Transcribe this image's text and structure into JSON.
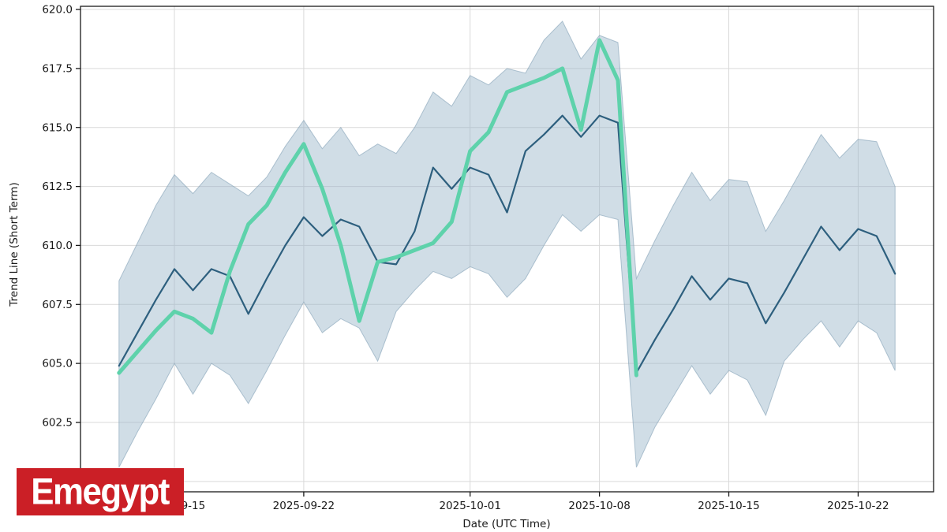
{
  "chart_data": {
    "type": "line",
    "xlabel": "Date (UTC Time)",
    "ylabel": "Trend Line (Short Term)",
    "grid": true,
    "legend": "none",
    "ylim": [
      599.5,
      620.15
    ],
    "x_dates": [
      "2025-09-12",
      "2025-09-13",
      "2025-09-14",
      "2025-09-15",
      "2025-09-16",
      "2025-09-17",
      "2025-09-18",
      "2025-09-19",
      "2025-09-20",
      "2025-09-21",
      "2025-09-22",
      "2025-09-23",
      "2025-09-24",
      "2025-09-25",
      "2025-09-26",
      "2025-09-27",
      "2025-09-28",
      "2025-09-29",
      "2025-09-30",
      "2025-10-01",
      "2025-10-02",
      "2025-10-03",
      "2025-10-04",
      "2025-10-05",
      "2025-10-06",
      "2025-10-07",
      "2025-10-08",
      "2025-10-09",
      "2025-10-10",
      "2025-10-11",
      "2025-10-12",
      "2025-10-13",
      "2025-10-14",
      "2025-10-15",
      "2025-10-16",
      "2025-10-17",
      "2025-10-18",
      "2025-10-19",
      "2025-10-20",
      "2025-10-21",
      "2025-10-22",
      "2025-10-23",
      "2025-10-24"
    ],
    "series": [
      {
        "name": "actual-line",
        "color": "#2d5f7e",
        "width": 2.2,
        "values": [
          604.9,
          606.3,
          607.7,
          609.0,
          608.1,
          609.0,
          608.7,
          607.1,
          608.6,
          610.0,
          611.2,
          610.4,
          611.1,
          610.8,
          609.3,
          609.2,
          610.6,
          613.3,
          612.4,
          613.3,
          613.0,
          611.4,
          614.0,
          614.7,
          615.5,
          614.6,
          615.5,
          615.2,
          604.6,
          606.0,
          607.3,
          608.7,
          607.7,
          608.6,
          608.4,
          606.7,
          608.0,
          609.4,
          610.8,
          609.8,
          610.7,
          610.4,
          608.8
        ]
      },
      {
        "name": "trend-line",
        "color": "#5ed2ab",
        "width": 5,
        "values": [
          604.6,
          605.5,
          606.4,
          607.2,
          606.9,
          606.3,
          608.9,
          610.9,
          611.7,
          613.1,
          614.3,
          612.4,
          610.0,
          606.8,
          609.3,
          609.5,
          609.8,
          610.1,
          611.0,
          614.0,
          614.8,
          616.5,
          616.8,
          617.1,
          617.5,
          614.9,
          618.7,
          617.0,
          604.5,
          null,
          null,
          null,
          null,
          null,
          null,
          null,
          null,
          null,
          null,
          null,
          null,
          null,
          null
        ]
      }
    ],
    "band": {
      "name": "confidence-band",
      "fill": "rgba(150,180,200,0.45)",
      "edge": "rgba(130,160,182,0.6)",
      "upper": [
        608.5,
        610.1,
        611.7,
        613.0,
        612.2,
        613.1,
        612.6,
        612.1,
        612.9,
        614.2,
        615.3,
        614.1,
        615.0,
        613.8,
        614.3,
        613.9,
        615.0,
        616.5,
        615.9,
        617.2,
        616.8,
        617.5,
        617.3,
        618.7,
        619.5,
        617.9,
        618.9,
        618.6,
        608.6,
        610.2,
        611.7,
        613.1,
        611.9,
        612.8,
        612.7,
        610.6,
        611.9,
        613.3,
        614.7,
        613.7,
        614.5,
        614.4,
        612.5
      ],
      "lower": [
        600.6,
        602.1,
        603.5,
        605.0,
        603.7,
        605.0,
        604.5,
        603.3,
        604.7,
        606.2,
        607.6,
        606.3,
        606.9,
        606.5,
        605.1,
        607.2,
        608.1,
        608.9,
        608.6,
        609.1,
        608.8,
        607.8,
        608.6,
        610.0,
        611.3,
        610.6,
        611.3,
        611.1,
        600.6,
        602.3,
        603.6,
        604.9,
        603.7,
        604.7,
        604.3,
        602.8,
        605.1,
        606.0,
        606.8,
        605.7,
        606.8,
        606.3,
        604.7
      ]
    },
    "y_gridlines": [
      600.0,
      602.5,
      605.0,
      607.5,
      610.0,
      612.5,
      615.0,
      617.5,
      620.0
    ],
    "y_ticks": [
      602.5,
      605.0,
      607.5,
      610.0,
      612.5,
      615.0,
      617.5,
      620.0
    ],
    "x_ticks": [
      {
        "index": 3,
        "label": "2025-09-15"
      },
      {
        "index": 10,
        "label": "2025-09-22"
      },
      {
        "index": 19,
        "label": "2025-10-01"
      },
      {
        "index": 26,
        "label": "2025-10-08"
      },
      {
        "index": 33,
        "label": "2025-10-15"
      },
      {
        "index": 40,
        "label": "2025-10-22"
      }
    ],
    "grid_color": "#d9d9d9",
    "frame_color": "#1a1a1a",
    "tick_text_color": "#191919"
  },
  "watermark": {
    "text": "Emegypt",
    "bg_color": "#cb1f26",
    "text_color": "#ffffff"
  }
}
